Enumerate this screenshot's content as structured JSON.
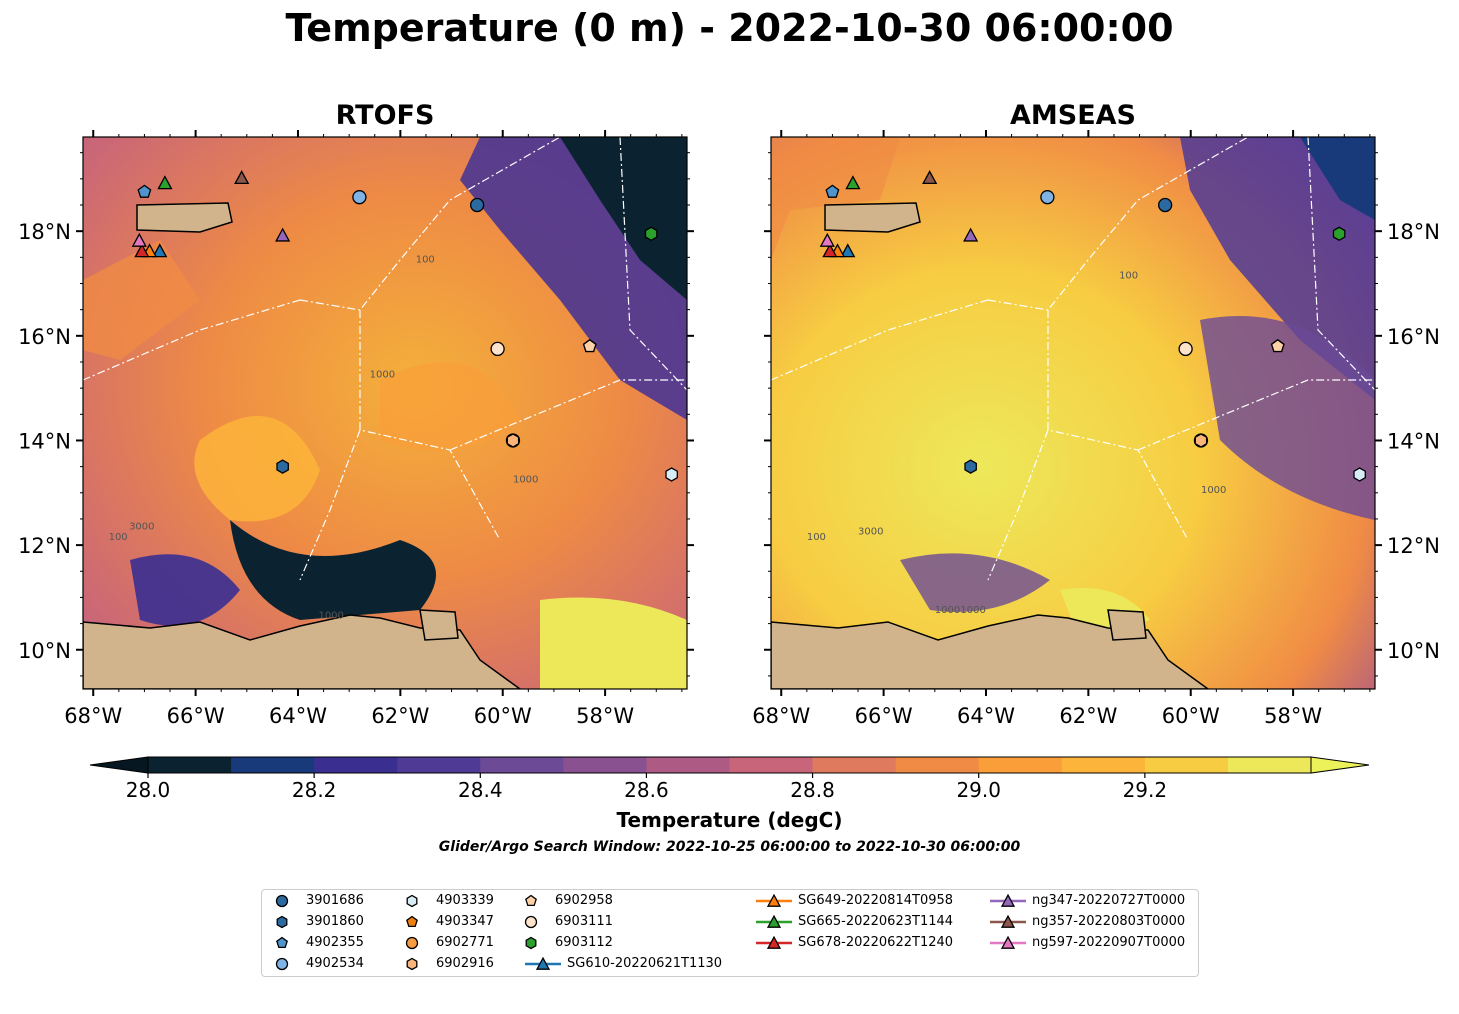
{
  "title": "Temperature (0 m) - 2022-10-30 06:00:00",
  "panels": [
    {
      "name": "RTOFS"
    },
    {
      "name": "AMSEAS"
    }
  ],
  "colorbar": {
    "label": "Temperature (degC)",
    "ticks": [
      "28.0",
      "28.2",
      "28.4",
      "28.6",
      "28.8",
      "29.0",
      "29.2"
    ],
    "colors": [
      "#0b2230",
      "#183a7a",
      "#3a2f91",
      "#4f3a96",
      "#6c4a96",
      "#8a5190",
      "#ad5a85",
      "#c8657a",
      "#e07a5e",
      "#f08b45",
      "#fa9e3a",
      "#fdb43a",
      "#f7cc42",
      "#ede85a"
    ],
    "min_color": "#061722",
    "max_color": "#ecf25a"
  },
  "search_window": "Glider/Argo Search Window: 2022-10-25 06:00:00 to 2022-10-30 06:00:00",
  "axes": {
    "x_ticks": [
      "68°W",
      "66°W",
      "64°W",
      "62°W",
      "60°W",
      "58°W"
    ],
    "y_ticks": [
      "18°N",
      "16°N",
      "14°N",
      "12°N",
      "10°N"
    ]
  },
  "chart_data": {
    "type": "map",
    "lon_range": [
      -68.2,
      -56.4
    ],
    "lat_range": [
      9.25,
      19.8
    ],
    "contour_labels": [
      "1000",
      "1000",
      "100",
      "3000",
      "100",
      "1000",
      "3000",
      "1000",
      "1000",
      "100",
      "1000",
      "100"
    ],
    "markers": [
      {
        "id": "3901686",
        "shape": "circle",
        "color": "#2b6aa0",
        "lon": -60.5,
        "lat": 18.5
      },
      {
        "id": "3901860",
        "shape": "hexagon",
        "color": "#2b6aa0",
        "lon": -64.3,
        "lat": 13.5
      },
      {
        "id": "4902355",
        "shape": "pentagon",
        "color": "#4f94cc",
        "lon": -67.0,
        "lat": 18.75
      },
      {
        "id": "4902534",
        "shape": "circle",
        "color": "#7fb2e5",
        "lon": -62.8,
        "lat": 18.65
      },
      {
        "id": "4903339",
        "shape": "hexagon",
        "color": "#d8ecf8",
        "lon": -56.7,
        "lat": 13.35
      },
      {
        "id": "4903347",
        "shape": "pentagon",
        "color": "#f07f12",
        "lon": -58.3,
        "lat": 15.8
      },
      {
        "id": "6902771",
        "shape": "circle",
        "color": "#f79c40",
        "lon": -59.8,
        "lat": 14.0
      },
      {
        "id": "6902916",
        "shape": "hexagon",
        "color": "#fbb47a",
        "lon": -59.8,
        "lat": 14.0
      },
      {
        "id": "6902958",
        "shape": "pentagon",
        "color": "#fdd0a8",
        "lon": -58.3,
        "lat": 15.8
      },
      {
        "id": "6903111",
        "shape": "circle",
        "color": "#fde3cc",
        "lon": -60.1,
        "lat": 15.75
      },
      {
        "id": "6903112",
        "shape": "hexagon",
        "color": "#2ca02c",
        "lon": -57.1,
        "lat": 17.95
      },
      {
        "id": "SG610-20220621T1130",
        "shape": "triangle",
        "color": "#1f77b4",
        "lon": -66.7,
        "lat": 17.6
      },
      {
        "id": "SG649-20220814T0958",
        "shape": "triangle",
        "color": "#ff7f0e",
        "lon": -66.9,
        "lat": 17.6
      },
      {
        "id": "SG665-20220623T1144",
        "shape": "triangle",
        "color": "#2ca02c",
        "lon": -66.6,
        "lat": 18.9
      },
      {
        "id": "SG678-20220622T1240",
        "shape": "triangle",
        "color": "#d62728",
        "lon": -67.05,
        "lat": 17.6
      },
      {
        "id": "ng347-20220727T0000",
        "shape": "triangle",
        "color": "#9467bd",
        "lon": -64.3,
        "lat": 17.9
      },
      {
        "id": "ng357-20220803T0000",
        "shape": "triangle",
        "color": "#8c564b",
        "lon": -65.1,
        "lat": 19.0
      },
      {
        "id": "ng597-20220907T0000",
        "shape": "triangle",
        "color": "#e377c2",
        "lon": -67.1,
        "lat": 17.8
      }
    ]
  },
  "legend": [
    {
      "label": "3901686",
      "shape": "circle",
      "color": "#2b6aa0",
      "line": false
    },
    {
      "label": "3901860",
      "shape": "hexagon",
      "color": "#2b6aa0",
      "line": false
    },
    {
      "label": "4902355",
      "shape": "pentagon",
      "color": "#4f94cc",
      "line": false
    },
    {
      "label": "4902534",
      "shape": "circle",
      "color": "#7fb2e5",
      "line": false
    },
    {
      "label": "4903339",
      "shape": "hexagon",
      "color": "#d8ecf8",
      "line": false
    },
    {
      "label": "4903347",
      "shape": "pentagon",
      "color": "#f07f12",
      "line": false
    },
    {
      "label": "6902771",
      "shape": "circle",
      "color": "#f79c40",
      "line": false
    },
    {
      "label": "6902916",
      "shape": "hexagon",
      "color": "#fbb47a",
      "line": false
    },
    {
      "label": "6902958",
      "shape": "pentagon",
      "color": "#fdd0a8",
      "line": false
    },
    {
      "label": "6903111",
      "shape": "circle",
      "color": "#fde3cc",
      "line": false
    },
    {
      "label": "6903112",
      "shape": "hexagon",
      "color": "#2ca02c",
      "line": false
    },
    {
      "label": "SG610-20220621T1130",
      "shape": "triangle",
      "color": "#1f77b4",
      "line": true
    },
    {
      "label": "SG649-20220814T0958",
      "shape": "triangle",
      "color": "#ff7f0e",
      "line": true
    },
    {
      "label": "SG665-20220623T1144",
      "shape": "triangle",
      "color": "#2ca02c",
      "line": true
    },
    {
      "label": "SG678-20220622T1240",
      "shape": "triangle",
      "color": "#d62728",
      "line": true
    },
    {
      "label": "ng347-20220727T0000",
      "shape": "triangle",
      "color": "#9467bd",
      "line": true
    },
    {
      "label": "ng357-20220803T0000",
      "shape": "triangle",
      "color": "#8c564b",
      "line": true
    },
    {
      "label": "ng597-20220907T0000",
      "shape": "triangle",
      "color": "#e377c2",
      "line": true
    }
  ],
  "colors": {
    "land": "#d2b48c",
    "coast": "#000000",
    "rivers": "#a7bdd6"
  }
}
